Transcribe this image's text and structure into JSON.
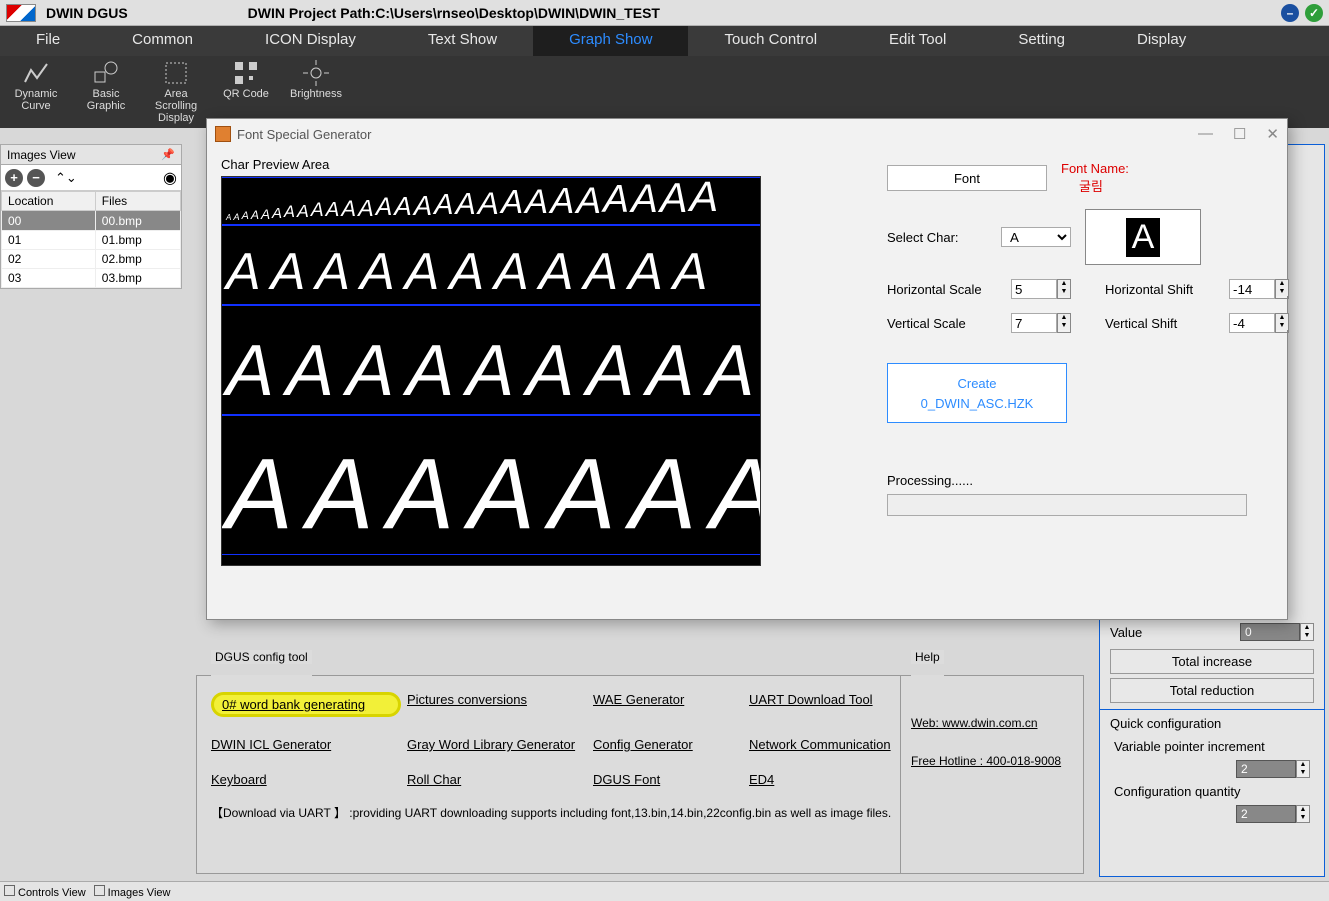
{
  "app": {
    "title": "DWIN DGUS",
    "project_path_label": "DWIN Project Path:",
    "project_path": "C:\\Users\\rnseo\\Desktop\\DWIN\\DWIN_TEST"
  },
  "menu": [
    "File",
    "Common",
    "ICON Display",
    "Text Show",
    "Graph Show",
    "Touch Control",
    "Edit Tool",
    "Setting",
    "Display"
  ],
  "menu_active": 4,
  "ribbon": [
    {
      "id": "dynamic-curve",
      "label": "Dynamic Curve"
    },
    {
      "id": "basic-graphic",
      "label": "Basic Graphic"
    },
    {
      "id": "area-scrolling",
      "label": "Area Scrolling Display"
    },
    {
      "id": "qr-code",
      "label": "QR Code"
    },
    {
      "id": "brightness",
      "label": "Brightness"
    }
  ],
  "images_view": {
    "title": "Images View",
    "columns": [
      "Location",
      "Files"
    ],
    "rows": [
      [
        "00",
        "00.bmp"
      ],
      [
        "01",
        "01.bmp"
      ],
      [
        "02",
        "02.bmp"
      ],
      [
        "03",
        "03.bmp"
      ]
    ],
    "selected": 0
  },
  "config_tool": {
    "title": "DGUS config tool",
    "links": [
      [
        "0# word bank generating",
        "Pictures conversions",
        "WAE Generator",
        "UART Download Tool"
      ],
      [
        "DWIN ICL Generator",
        "Gray Word Library Generator",
        "Config Generator",
        "Network Communication"
      ],
      [
        "Keyboard",
        "Roll Char",
        "DGUS Font",
        "ED4"
      ]
    ],
    "highlighted": "0# word bank generating",
    "download_note": "【Download via UART 】 :providing UART downloading supports including font,13.bin,14.bin,22config.bin as well as image files."
  },
  "help": {
    "title": "Help",
    "web": "Web: www.dwin.com.cn",
    "hotline": "Free Hotline : 400-018-9008"
  },
  "prop": {
    "value_label": "Value",
    "value": "0",
    "btn_inc": "Total increase",
    "btn_dec": "Total reduction",
    "quick_title": "Quick configuration",
    "vp_label": "Variable pointer increment",
    "vp_val": "2",
    "cq_label": "Configuration quantity",
    "cq_val": "2"
  },
  "status": {
    "controls": "Controls View",
    "images": "Images View"
  },
  "dialog": {
    "title": "Font Special Generator",
    "preview_label": "Char Preview Area",
    "font_btn": "Font",
    "font_name_label": "Font Name:",
    "font_name": "굴림",
    "select_char_label": "Select Char:",
    "select_char": "A",
    "hscale_label": "Horizontal Scale",
    "hscale": "5",
    "vscale_label": "Vertical Scale",
    "vscale": "7",
    "hshift_label": "Horizontal Shift",
    "hshift": "-14",
    "vshift_label": "Vertical Shift",
    "vshift": "-4",
    "create_label": "Create",
    "create_file": "0_DWIN_ASC.HZK",
    "processing": "Processing......",
    "preview_char": "A"
  },
  "colors": {
    "menu_bg": "#3a3a3a",
    "active": "#2d8cff",
    "panel_border": "#0b5fd8",
    "highlight": "#f2f038"
  }
}
